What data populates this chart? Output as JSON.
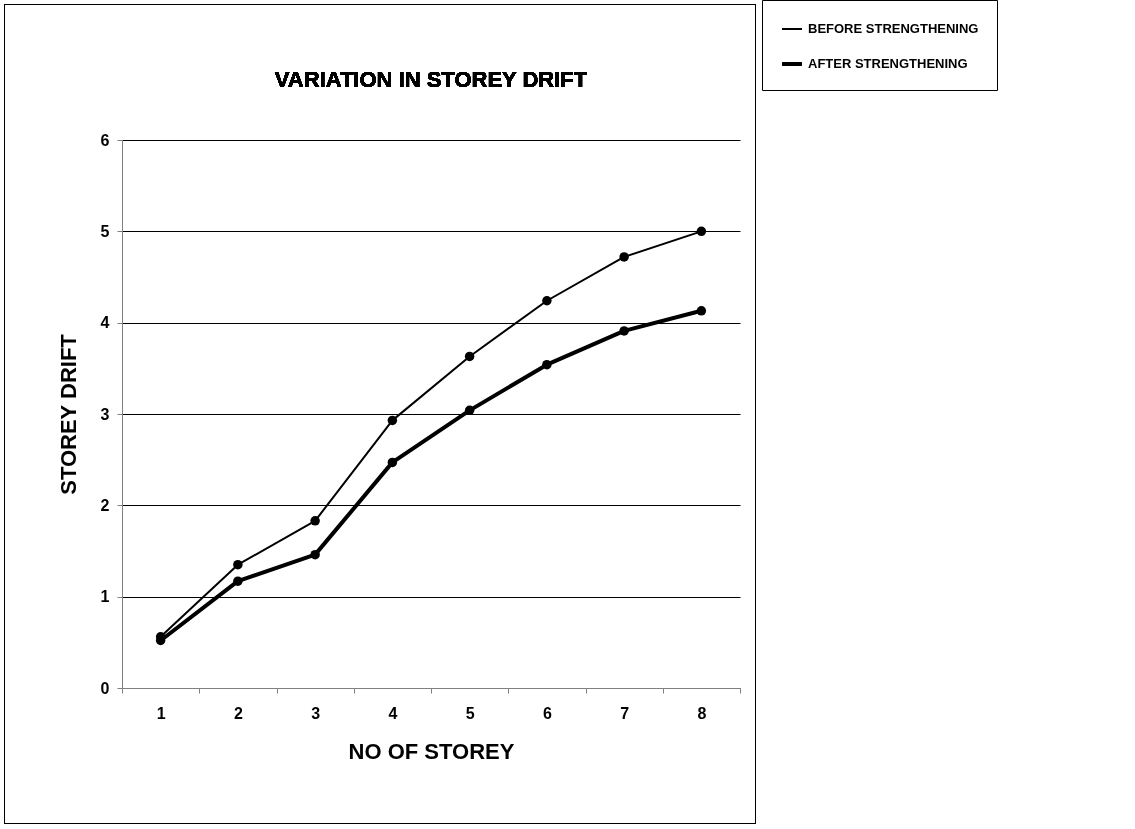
{
  "chart_data": {
    "type": "line",
    "title": "VARIATION IN STOREY DRIFT",
    "xlabel": "NO OF STOREY",
    "ylabel": "STOREY DRIFT",
    "categories": [
      "1",
      "2",
      "3",
      "4",
      "5",
      "6",
      "7",
      "8"
    ],
    "series": [
      {
        "name": "BEFORE STRENGTHENING",
        "color": "#000000",
        "values": [
          0.56,
          1.35,
          1.83,
          2.93,
          3.63,
          4.24,
          4.72,
          5.0
        ]
      },
      {
        "name": "AFTER STRENGTHENING",
        "color": "#000000",
        "values": [
          0.52,
          1.17,
          1.46,
          2.47,
          3.04,
          3.54,
          3.91,
          4.13
        ]
      }
    ],
    "ylim": [
      0,
      6
    ],
    "yticks": [
      0,
      1,
      2,
      3,
      4,
      5,
      6
    ],
    "grid": "y",
    "legend": "top right",
    "marker": "circle",
    "line_style": "solid"
  }
}
